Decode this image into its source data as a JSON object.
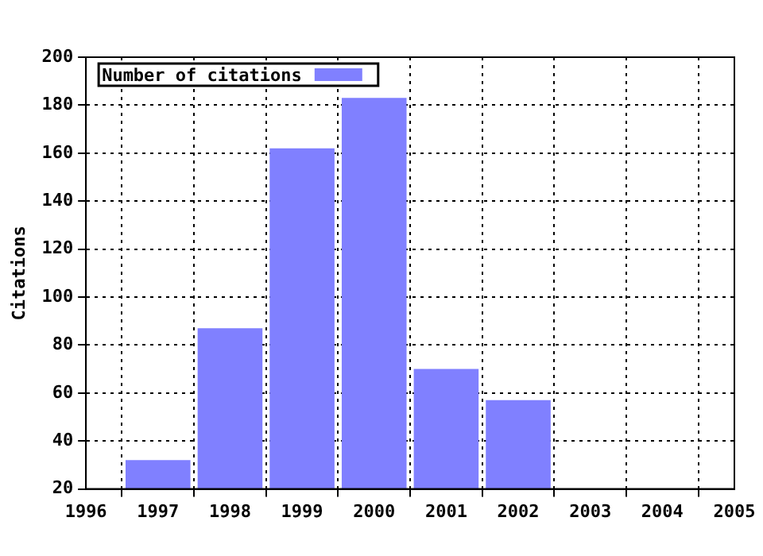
{
  "chart_data": {
    "type": "bar",
    "ylabel": "Citations",
    "x": [
      1997,
      1998,
      1999,
      2000,
      2001,
      2002
    ],
    "series": [
      {
        "name": "Number of citations",
        "color": "#8080ff",
        "values": [
          32,
          87,
          162,
          183,
          70,
          57
        ]
      }
    ],
    "xlim": [
      1996,
      2005
    ],
    "xticks": [
      1996,
      1997,
      1998,
      1999,
      2000,
      2001,
      2002,
      2003,
      2004,
      2005
    ],
    "ylim": [
      20,
      200
    ],
    "yticks": [
      20,
      40,
      60,
      80,
      100,
      120,
      140,
      160,
      180,
      200
    ],
    "grid": true,
    "legend": "top left"
  }
}
